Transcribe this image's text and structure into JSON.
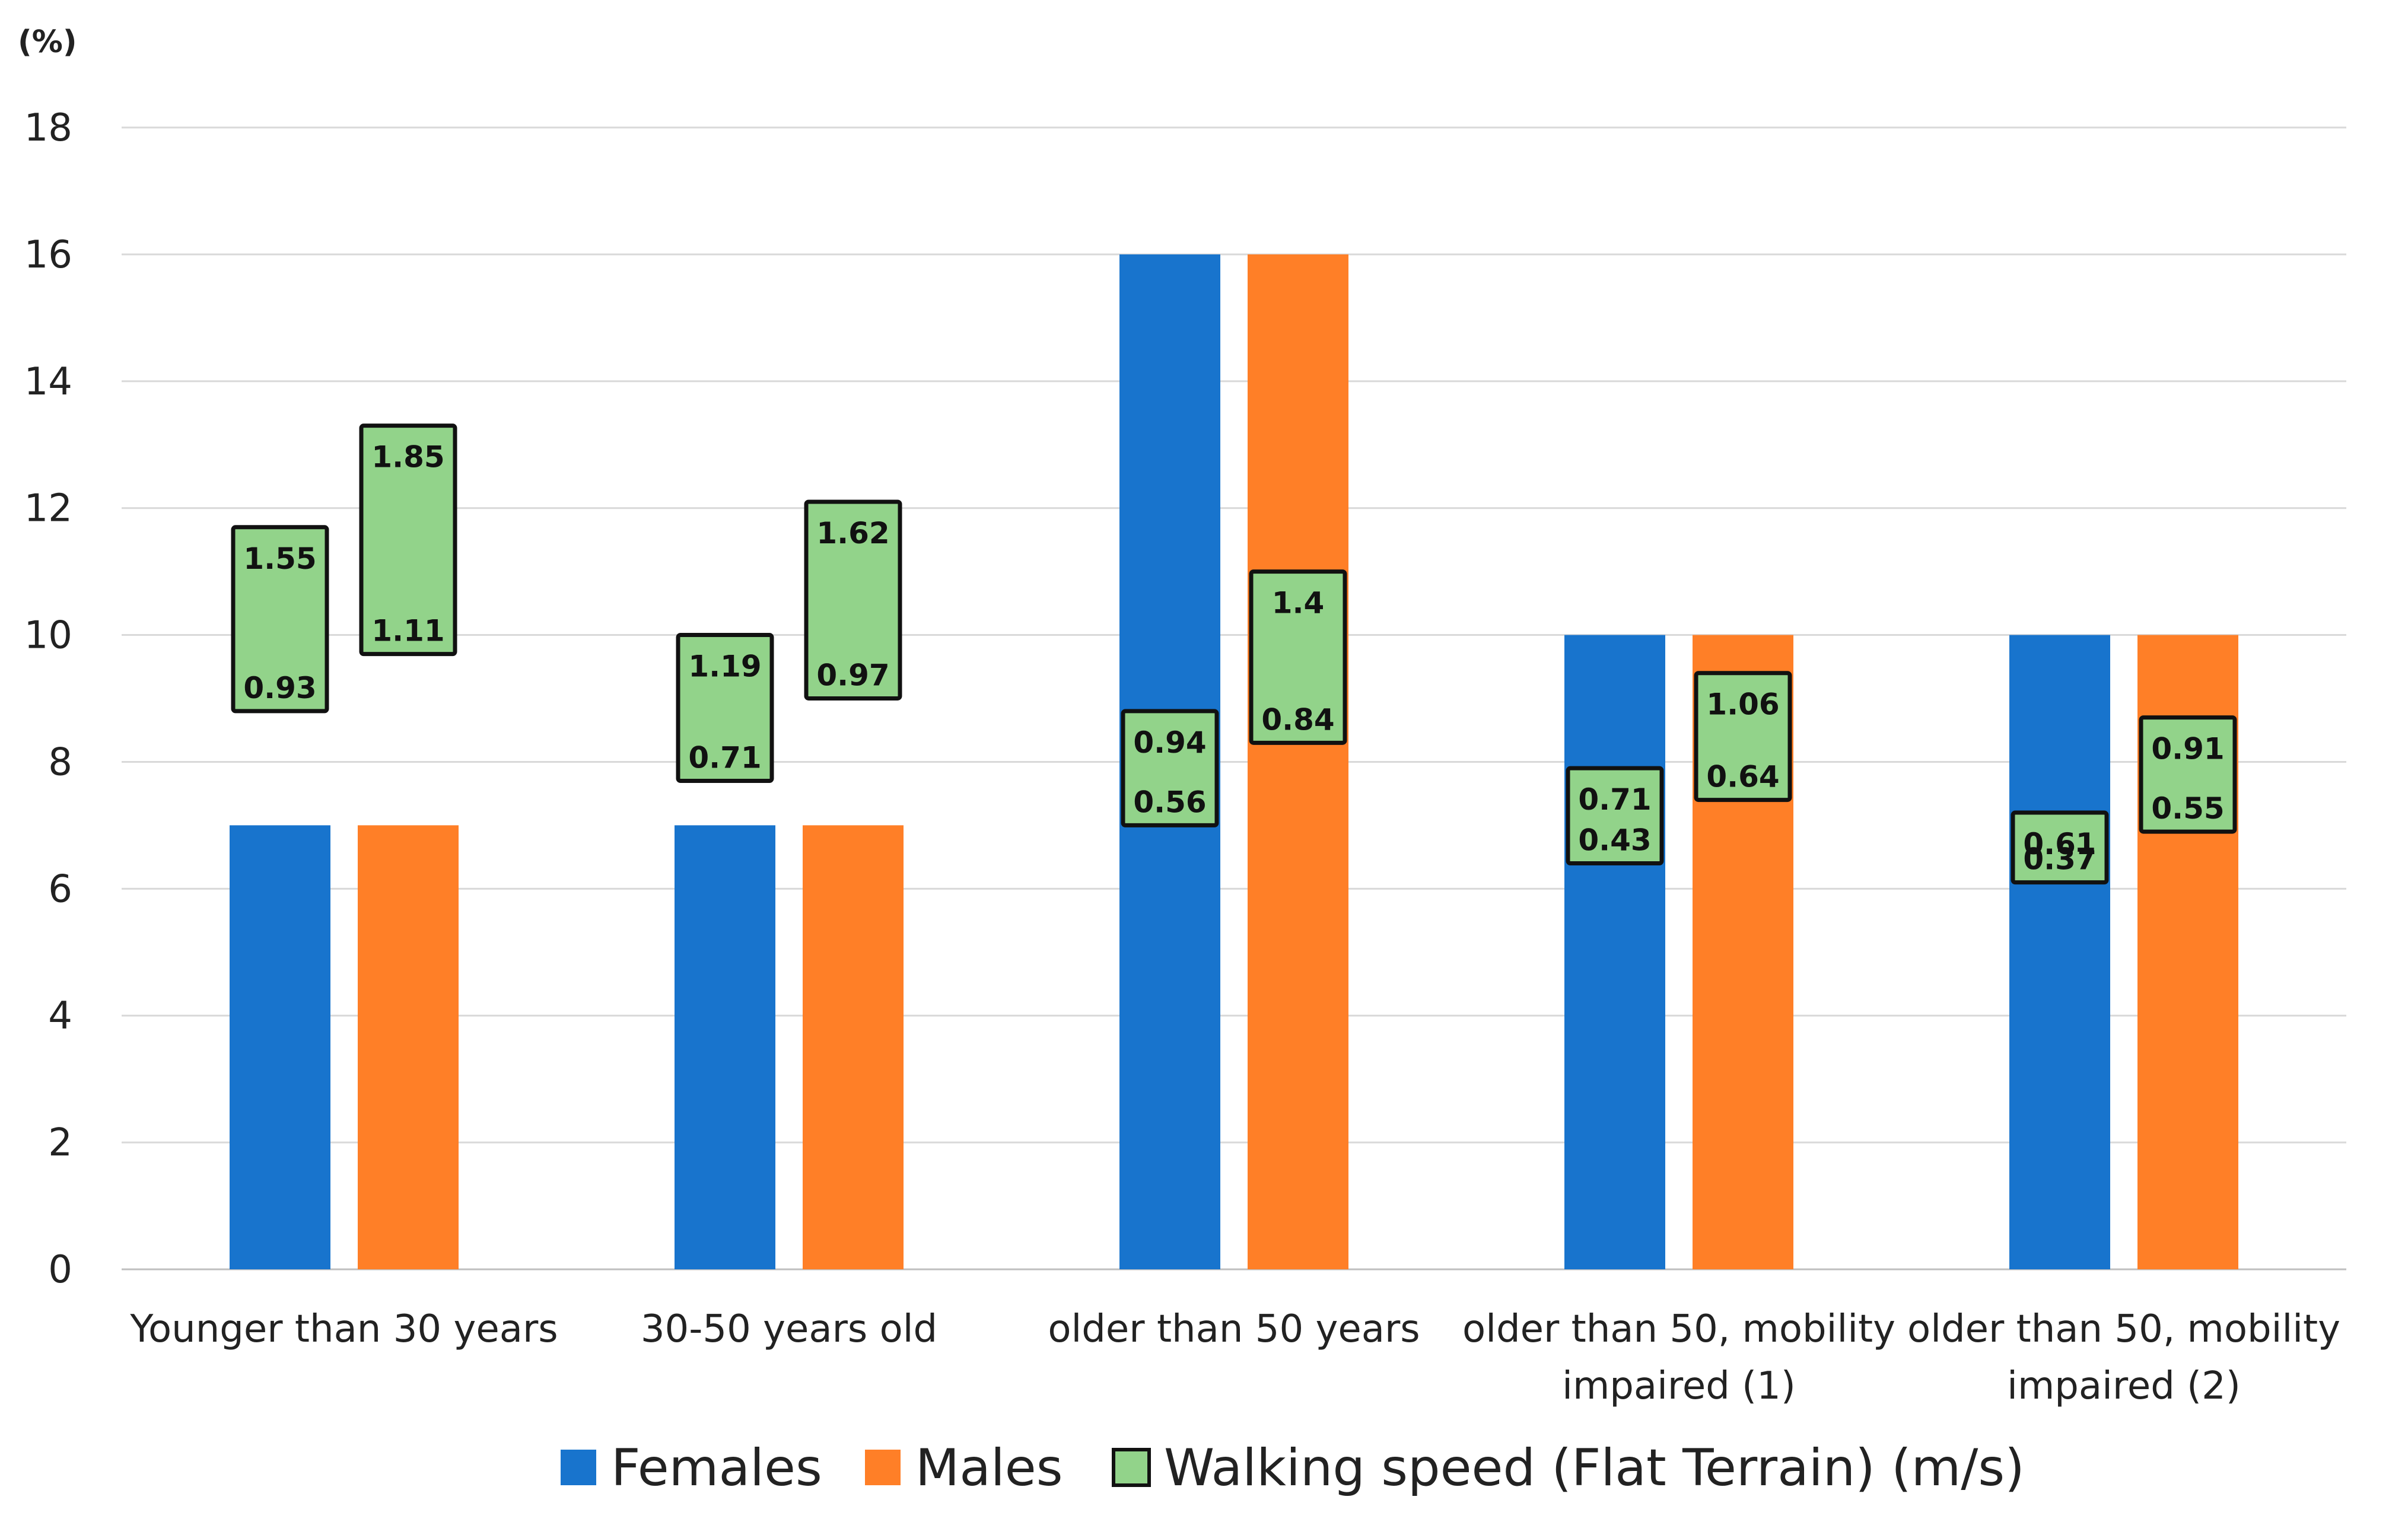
{
  "chart_data": {
    "type": "bar",
    "title": "",
    "xlabel": "",
    "ylabel": "(%)",
    "ylim": [
      0,
      18
    ],
    "yticks": [
      "0",
      "2",
      "4",
      "6",
      "8",
      "10",
      "12",
      "14",
      "16",
      "18"
    ],
    "grid": true,
    "legend_position": "bottom",
    "categories": [
      [
        "Younger than 30 years"
      ],
      [
        "30-50 years old"
      ],
      [
        "older than 50 years"
      ],
      [
        "older than 50, mobility",
        "impaired (1)"
      ],
      [
        "older than 50, mobility",
        "impaired (2)"
      ]
    ],
    "series": [
      {
        "name": "Females",
        "color": "#1874cd",
        "values": [
          7,
          7,
          16,
          10,
          10
        ]
      },
      {
        "name": "Males",
        "color": "#ff7f27",
        "values": [
          7,
          7,
          16,
          10,
          10
        ]
      }
    ],
    "walking_speed": {
      "name": "Walking speed (Flat Terrain) (m/s)",
      "color": "#92d38a",
      "border": "#111111",
      "females": [
        {
          "high": "1.55",
          "low": "0.93",
          "y_top": 11.7,
          "y_bottom": 8.8
        },
        {
          "high": "1.19",
          "low": "0.71",
          "y_top": 10.0,
          "y_bottom": 7.7
        },
        {
          "high": "0.94",
          "low": "0.56",
          "y_top": 8.8,
          "y_bottom": 7.0
        },
        {
          "high": "0.71",
          "low": "0.43",
          "y_top": 7.9,
          "y_bottom": 6.4
        },
        {
          "high": "0.61",
          "low": "0.37",
          "y_top": 7.2,
          "y_bottom": 6.1
        }
      ],
      "males": [
        {
          "high": "1.85",
          "low": "1.11",
          "y_top": 13.3,
          "y_bottom": 9.7
        },
        {
          "high": "1.62",
          "low": "0.97",
          "y_top": 12.1,
          "y_bottom": 9.0
        },
        {
          "high": "1.4",
          "low": "0.84",
          "y_top": 11.0,
          "y_bottom": 8.3
        },
        {
          "high": "1.06",
          "low": "0.64",
          "y_top": 9.4,
          "y_bottom": 7.4
        },
        {
          "high": "0.91",
          "low": "0.55",
          "y_top": 8.7,
          "y_bottom": 6.9
        }
      ]
    }
  }
}
